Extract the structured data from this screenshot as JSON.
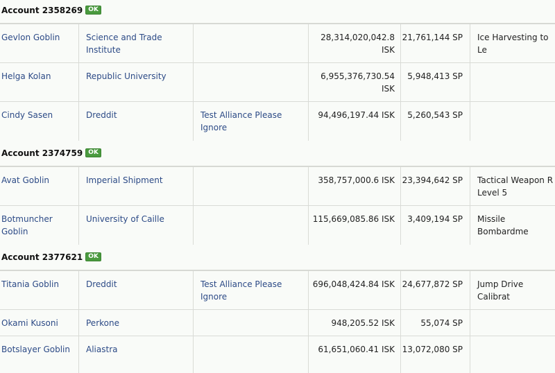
{
  "ok_label": "OK",
  "accounts": [
    {
      "title": "Account 2358269",
      "rows": [
        {
          "name": "Gevlon Goblin",
          "corp": "Science and Trade Institute",
          "alliance": "",
          "isk": "28,314,020,042.8 ISK",
          "sp": "21,761,144 SP",
          "skill": "Ice Harvesting to Le"
        },
        {
          "name": "Helga Kolan",
          "corp": "Republic University",
          "alliance": "",
          "isk": "6,955,376,730.54 ISK",
          "sp": "5,948,413 SP",
          "skill": ""
        },
        {
          "name": "Cindy Sasen",
          "corp": "Dreddit",
          "alliance": "Test Alliance Please Ignore",
          "isk": "94,496,197.44 ISK",
          "sp": "5,260,543 SP",
          "skill": ""
        }
      ]
    },
    {
      "title": "Account 2374759",
      "rows": [
        {
          "name": "Avat Goblin",
          "corp": "Imperial Shipment",
          "alliance": "",
          "isk": "358,757,000.6 ISK",
          "sp": "23,394,642 SP",
          "skill": "Tactical Weapon R Level 5"
        },
        {
          "name": "Botmuncher Goblin",
          "corp": "University of Caille",
          "alliance": "",
          "isk": "115,669,085.86 ISK",
          "sp": "3,409,194 SP",
          "skill": "Missile Bombardme"
        }
      ]
    },
    {
      "title": "Account 2377621",
      "rows": [
        {
          "name": "Titania Goblin",
          "corp": "Dreddit",
          "alliance": "Test Alliance Please Ignore",
          "isk": "696,048,424.84 ISK",
          "sp": "24,677,872 SP",
          "skill": "Jump Drive Calibrat"
        },
        {
          "name": "Okami Kusoni",
          "corp": "Perkone",
          "alliance": "",
          "isk": "948,205.52 ISK",
          "sp": "55,074 SP",
          "skill": ""
        },
        {
          "name": "Botslayer Goblin",
          "corp": "Aliastra",
          "alliance": "",
          "isk": "61,651,060.41 ISK",
          "sp": "13,072,080 SP",
          "skill": ""
        }
      ]
    }
  ]
}
